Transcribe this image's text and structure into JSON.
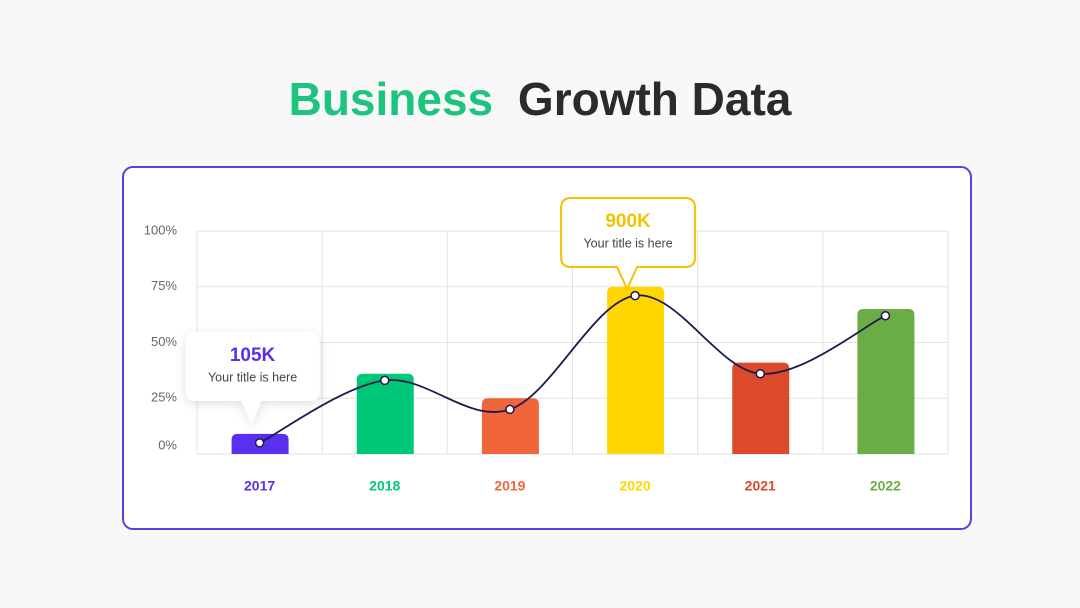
{
  "chart_data": {
    "type": "bar",
    "title_parts": [
      {
        "text": "Business",
        "color": "#1dc47e"
      },
      {
        "text": "Growth Data",
        "color": "#2b2b2b"
      }
    ],
    "categories": [
      "2017",
      "2018",
      "2019",
      "2020",
      "2021",
      "2022"
    ],
    "series": [
      {
        "type": "bar",
        "colors": [
          "#5a2ff0",
          "#00c878",
          "#f0653a",
          "#ffd600",
          "#db4a2b",
          "#6aac45"
        ],
        "values": [
          9,
          36,
          25,
          75,
          41,
          65
        ]
      },
      {
        "type": "line",
        "color": "#1f1a4d",
        "values": [
          5,
          33,
          20,
          71,
          36,
          62
        ]
      }
    ],
    "ylim": [
      0,
      100
    ],
    "yticks": [
      {
        "value": 0,
        "label": "0%"
      },
      {
        "value": 25,
        "label": "25%"
      },
      {
        "value": 50,
        "label": "50%"
      },
      {
        "value": 75,
        "label": "75%"
      },
      {
        "value": 100,
        "label": "100%"
      }
    ],
    "grid": true,
    "annotations": [
      {
        "text": "105K",
        "subtext": "Your title is here",
        "color": "#5a2ff0"
      },
      {
        "text": "900K",
        "subtext": "Your title is here",
        "color": "#f2c300"
      }
    ]
  }
}
